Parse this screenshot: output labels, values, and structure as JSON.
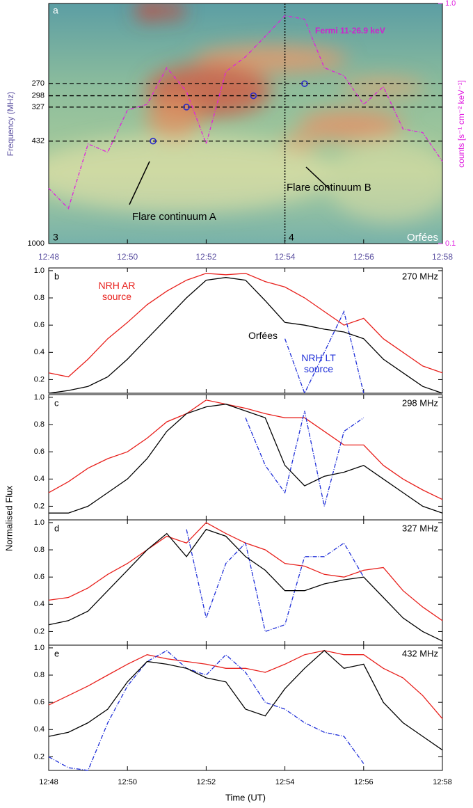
{
  "ylabel": "Normalised Flux",
  "chart_data": [
    {
      "type": "spectrogram",
      "panel_label": "a",
      "subpanel_labels": [
        "3",
        "4"
      ],
      "instrument": "Orfées",
      "ylabel": "Frequency (MHz)",
      "y2label": "counts [s⁻¹ cm⁻² keV⁻¹]",
      "annotations": [
        "Flare continuum A",
        "Flare continuum B"
      ],
      "xlim": [
        48,
        58
      ],
      "xticks": [
        {
          "value": 48,
          "label": "12:48"
        },
        {
          "value": 50,
          "label": "12:50"
        },
        {
          "value": 52,
          "label": "12:52"
        },
        {
          "value": 54,
          "label": "12:54"
        },
        {
          "value": 56,
          "label": "12:56"
        },
        {
          "value": 58,
          "label": "12:58"
        }
      ],
      "yscale": "log",
      "ylim": [
        1000,
        140
      ],
      "yticks": [
        270,
        298,
        327,
        432,
        1000
      ],
      "y2scale": "log",
      "y2lim": [
        0.1,
        1
      ],
      "y2ticks": [
        0.1,
        {
          "value": 1,
          "label": "1.0"
        }
      ],
      "vline_x": 54,
      "sources": {
        "color": "#2a2ac8",
        "x": [
          50.65,
          51.5,
          53.2,
          54.5
        ],
        "y": [
          432,
          327,
          298,
          270
        ]
      },
      "x": [
        48,
        48.5,
        49,
        49.5,
        50,
        50.5,
        51,
        51.5,
        52,
        52.5,
        53,
        53.5,
        54,
        54.5,
        55,
        55.5,
        56,
        56.5,
        57,
        57.5,
        58
      ],
      "series": [
        {
          "name": "Fermi 11-26.9 keV",
          "color": "#e020e0",
          "axis": "y2",
          "values": [
            0.17,
            0.14,
            0.26,
            0.24,
            0.36,
            0.38,
            0.54,
            0.43,
            0.26,
            0.52,
            0.6,
            0.73,
            0.89,
            0.86,
            0.54,
            0.5,
            0.38,
            0.45,
            0.3,
            0.29,
            0.22
          ]
        }
      ]
    },
    {
      "type": "line",
      "panel_label": "b",
      "frequency": "270 MHz",
      "xlim": [
        48,
        58
      ],
      "xticks": [
        48,
        50,
        52,
        54,
        56,
        58
      ],
      "ylim": [
        0.1,
        1.02
      ],
      "yticks": [
        0.2,
        0.4,
        0.6,
        0.8,
        {
          "value": 1,
          "label": "1.0"
        }
      ],
      "x": [
        48,
        48.5,
        49,
        49.5,
        50,
        50.5,
        51,
        51.5,
        52,
        52.5,
        53,
        53.5,
        54,
        54.5,
        55,
        55.5,
        56,
        56.5,
        57,
        57.5,
        58
      ],
      "series": [
        {
          "name": "NRH AR source",
          "color": "#e8201c",
          "values": [
            0.25,
            0.22,
            0.35,
            0.5,
            0.62,
            0.75,
            0.85,
            0.93,
            0.98,
            0.97,
            0.98,
            0.92,
            0.88,
            0.8,
            0.7,
            0.6,
            0.65,
            0.5,
            0.4,
            0.3,
            0.25
          ]
        },
        {
          "name": "Orfées",
          "color": "#000000",
          "values": [
            0.1,
            0.12,
            0.15,
            0.22,
            0.35,
            0.5,
            0.65,
            0.8,
            0.93,
            0.95,
            0.93,
            0.78,
            0.62,
            0.6,
            0.57,
            0.55,
            0.5,
            0.35,
            0.25,
            0.15,
            0.1
          ]
        },
        {
          "name": "NRH LT source",
          "color": "#1f2fd8",
          "dashed": true,
          "values": [
            null,
            null,
            null,
            null,
            null,
            null,
            null,
            null,
            null,
            null,
            null,
            null,
            0.5,
            0.1,
            0.4,
            0.7,
            0.1,
            null,
            null,
            null,
            null
          ]
        }
      ]
    },
    {
      "type": "line",
      "panel_label": "c",
      "frequency": "298 MHz",
      "xlim": [
        48,
        58
      ],
      "xticks": [
        48,
        50,
        52,
        54,
        56,
        58
      ],
      "ylim": [
        0.1,
        1.02
      ],
      "yticks": [
        0.2,
        0.4,
        0.6,
        0.8,
        {
          "value": 1,
          "label": "1.0"
        }
      ],
      "x": [
        48,
        48.5,
        49,
        49.5,
        50,
        50.5,
        51,
        51.5,
        52,
        52.5,
        53,
        53.5,
        54,
        54.5,
        55,
        55.5,
        56,
        56.5,
        57,
        57.5,
        58
      ],
      "series": [
        {
          "color": "#e8201c",
          "values": [
            0.3,
            0.38,
            0.48,
            0.55,
            0.6,
            0.7,
            0.82,
            0.88,
            0.98,
            0.95,
            0.92,
            0.88,
            0.85,
            0.85,
            0.75,
            0.65,
            0.65,
            0.5,
            0.4,
            0.32,
            0.25
          ]
        },
        {
          "color": "#000000",
          "values": [
            0.15,
            0.15,
            0.2,
            0.3,
            0.4,
            0.55,
            0.75,
            0.88,
            0.93,
            0.95,
            0.9,
            0.85,
            0.5,
            0.35,
            0.42,
            0.45,
            0.5,
            0.4,
            0.3,
            0.2,
            0.15
          ]
        },
        {
          "color": "#1f2fd8",
          "dashed": true,
          "values": [
            null,
            null,
            null,
            null,
            null,
            null,
            null,
            null,
            null,
            null,
            0.85,
            0.5,
            0.3,
            0.9,
            0.2,
            0.75,
            0.85,
            null,
            null,
            null,
            null
          ]
        }
      ]
    },
    {
      "type": "line",
      "panel_label": "d",
      "frequency": "327 MHz",
      "xlim": [
        48,
        58
      ],
      "xticks": [
        48,
        50,
        52,
        54,
        56,
        58
      ],
      "ylim": [
        0.1,
        1.02
      ],
      "yticks": [
        0.2,
        0.4,
        0.6,
        0.8,
        {
          "value": 1,
          "label": "1.0"
        }
      ],
      "x": [
        48,
        48.5,
        49,
        49.5,
        50,
        50.5,
        51,
        51.5,
        52,
        52.5,
        53,
        53.5,
        54,
        54.5,
        55,
        55.5,
        56,
        56.5,
        57,
        57.5,
        58
      ],
      "series": [
        {
          "color": "#e8201c",
          "values": [
            0.43,
            0.45,
            0.52,
            0.62,
            0.7,
            0.8,
            0.9,
            0.85,
            1.0,
            0.92,
            0.85,
            0.8,
            0.7,
            0.68,
            0.62,
            0.6,
            0.65,
            0.67,
            0.5,
            0.38,
            0.28
          ]
        },
        {
          "color": "#000000",
          "values": [
            0.25,
            0.28,
            0.35,
            0.5,
            0.65,
            0.8,
            0.92,
            0.75,
            0.95,
            0.9,
            0.75,
            0.65,
            0.5,
            0.5,
            0.55,
            0.58,
            0.6,
            0.45,
            0.3,
            0.2,
            0.13
          ]
        },
        {
          "color": "#1f2fd8",
          "dashed": true,
          "values": [
            null,
            null,
            null,
            null,
            null,
            null,
            null,
            0.95,
            0.3,
            0.7,
            0.85,
            0.2,
            0.25,
            0.75,
            0.75,
            0.85,
            0.6,
            null,
            null,
            null,
            null
          ]
        }
      ]
    },
    {
      "type": "line",
      "panel_label": "e",
      "frequency": "432 MHz",
      "xlabel": "Time (UT)",
      "xlim": [
        48,
        58
      ],
      "xticks": [
        {
          "value": 48,
          "label": "12:48"
        },
        {
          "value": 50,
          "label": "12:50"
        },
        {
          "value": 52,
          "label": "12:52"
        },
        {
          "value": 54,
          "label": "12:54"
        },
        {
          "value": 56,
          "label": "12:56"
        },
        {
          "value": 58,
          "label": "12:58"
        }
      ],
      "ylim": [
        0.1,
        1.02
      ],
      "yticks": [
        0.2,
        0.4,
        0.6,
        0.8,
        {
          "value": 1,
          "label": "1.0"
        }
      ],
      "x": [
        48,
        48.5,
        49,
        49.5,
        50,
        50.5,
        51,
        51.5,
        52,
        52.5,
        53,
        53.5,
        54,
        54.5,
        55,
        55.5,
        56,
        56.5,
        57,
        57.5,
        58
      ],
      "series": [
        {
          "color": "#e8201c",
          "values": [
            0.58,
            0.65,
            0.72,
            0.8,
            0.88,
            0.95,
            0.92,
            0.9,
            0.88,
            0.85,
            0.85,
            0.82,
            0.88,
            0.95,
            0.98,
            0.95,
            0.95,
            0.85,
            0.78,
            0.65,
            0.48
          ]
        },
        {
          "color": "#000000",
          "values": [
            0.35,
            0.38,
            0.45,
            0.55,
            0.75,
            0.9,
            0.88,
            0.85,
            0.78,
            0.75,
            0.55,
            0.5,
            0.7,
            0.85,
            0.98,
            0.85,
            0.88,
            0.6,
            0.45,
            0.35,
            0.25
          ]
        },
        {
          "color": "#1f2fd8",
          "dashed": true,
          "values": [
            0.2,
            0.12,
            0.1,
            0.45,
            0.72,
            0.9,
            0.98,
            0.85,
            0.8,
            0.95,
            0.82,
            0.6,
            0.55,
            0.45,
            0.38,
            0.35,
            0.15,
            null,
            null,
            null,
            null
          ]
        }
      ]
    }
  ]
}
